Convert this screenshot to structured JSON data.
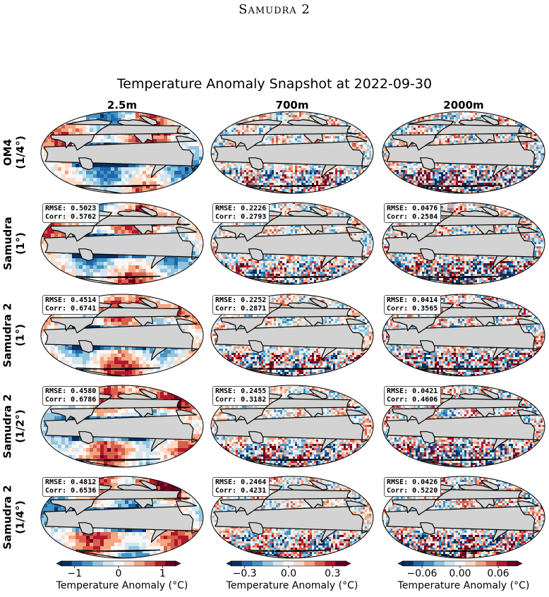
{
  "page_header": "Samudra 2",
  "title": "Temperature Anomaly Snapshot at 2022-09-30",
  "columns": [
    "2.5m",
    "700m",
    "2000m"
  ],
  "rows": [
    {
      "label": "OM4\n(1/4°)",
      "cells": [
        null,
        null,
        null
      ]
    },
    {
      "label": "Samudra\n(1°)",
      "cells": [
        {
          "rmse": "RMSE: 0.5023",
          "corr": "Corr: 0.5762"
        },
        {
          "rmse": "RMSE: 0.2226",
          "corr": "Corr: 0.2793"
        },
        {
          "rmse": "RMSE: 0.0476",
          "corr": "Corr: 0.2584"
        }
      ]
    },
    {
      "label": "Samudra 2\n(1°)",
      "cells": [
        {
          "rmse": "RMSE: 0.4514",
          "corr": "Corr: 0.6741"
        },
        {
          "rmse": "RMSE: 0.2252",
          "corr": "Corr: 0.2871"
        },
        {
          "rmse": "RMSE: 0.0414",
          "corr": "Corr: 0.3565"
        }
      ]
    },
    {
      "label": "Samudra 2\n(1/2°)",
      "cells": [
        {
          "rmse": "RMSE: 0.4580",
          "corr": "Corr: 0.6786"
        },
        {
          "rmse": "RMSE: 0.2455",
          "corr": "Corr: 0.3182"
        },
        {
          "rmse": "RMSE: 0.0421",
          "corr": "Corr: 0.4606"
        }
      ]
    },
    {
      "label": "Samudra 2\n(1/4°)",
      "cells": [
        {
          "rmse": "RMSE: 0.4812",
          "corr": "Corr: 0.6536"
        },
        {
          "rmse": "RMSE: 0.2464",
          "corr": "Corr: 0.4231"
        },
        {
          "rmse": "RMSE: 0.0426",
          "corr": "Corr: 0.5220"
        }
      ]
    }
  ],
  "colorbars": [
    {
      "min": -1.3,
      "max": 1.3,
      "ticks": [
        -1,
        0,
        1
      ],
      "tick_labels": [
        "−1",
        "0",
        "1"
      ],
      "label": "Temperature Anomaly (°C)"
    },
    {
      "min": -0.39,
      "max": 0.39,
      "ticks": [
        -0.3,
        0,
        0.3
      ],
      "tick_labels": [
        "−0.3",
        "0.0",
        "0.3"
      ],
      "label": "Temperature Anomaly (°C)"
    },
    {
      "min": -0.09,
      "max": 0.09,
      "ticks": [
        -0.06,
        0,
        0.06
      ],
      "tick_labels": [
        "−0.06",
        "0.00",
        "0.06"
      ],
      "label": "Temperature Anomaly (°C)"
    }
  ],
  "colormap": [
    "#053061",
    "#2166ac",
    "#4393c3",
    "#92c5de",
    "#d1e5f0",
    "#f7f7f7",
    "#fddbc7",
    "#f4a582",
    "#d6604d",
    "#b2182b",
    "#67001f"
  ],
  "land_color": "#d3d3d3"
}
